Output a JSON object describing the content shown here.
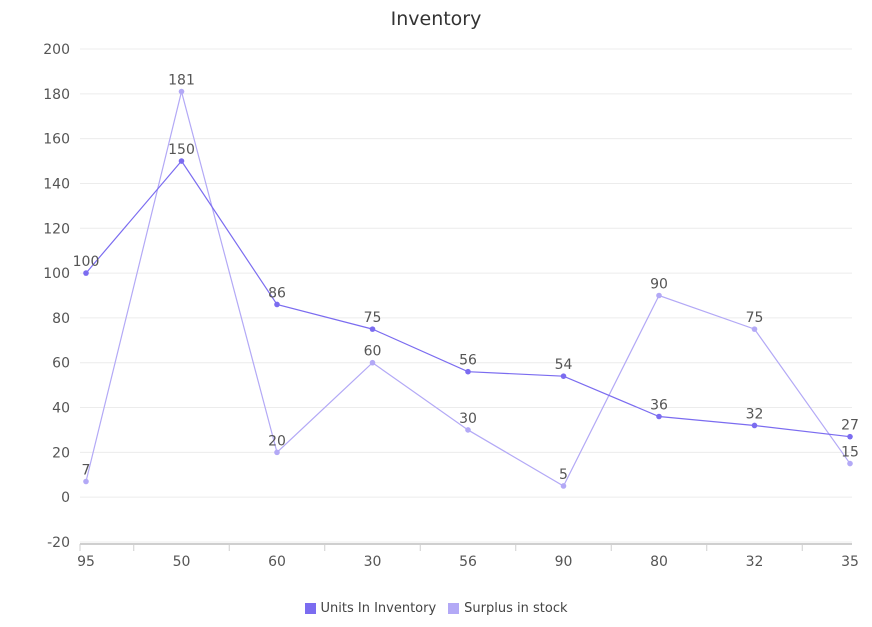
{
  "chart_data": {
    "type": "line",
    "title": "Inventory",
    "categories": [
      "95",
      "50",
      "60",
      "30",
      "56",
      "90",
      "80",
      "32",
      "35"
    ],
    "ylim": [
      -20,
      200
    ],
    "yticks": [
      -20,
      0,
      20,
      40,
      60,
      80,
      100,
      120,
      140,
      160,
      180,
      200
    ],
    "grid": true,
    "legend_position": "bottom-center",
    "series": [
      {
        "name": "Units In Inventory",
        "color": "#7b6cf0",
        "values": [
          100,
          150,
          86,
          75,
          56,
          54,
          36,
          32,
          27
        ]
      },
      {
        "name": "Surplus in stock",
        "color": "#b3a9f6",
        "values": [
          7,
          181,
          20,
          60,
          30,
          5,
          90,
          75,
          15
        ]
      }
    ]
  }
}
